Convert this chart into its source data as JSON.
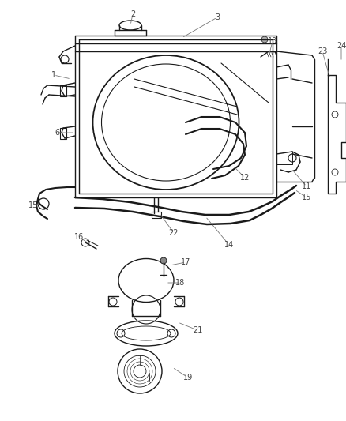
{
  "background_color": "#ffffff",
  "line_color": "#1a1a1a",
  "label_color": "#444444",
  "fig_width": 4.39,
  "fig_height": 5.33,
  "dpi": 100
}
